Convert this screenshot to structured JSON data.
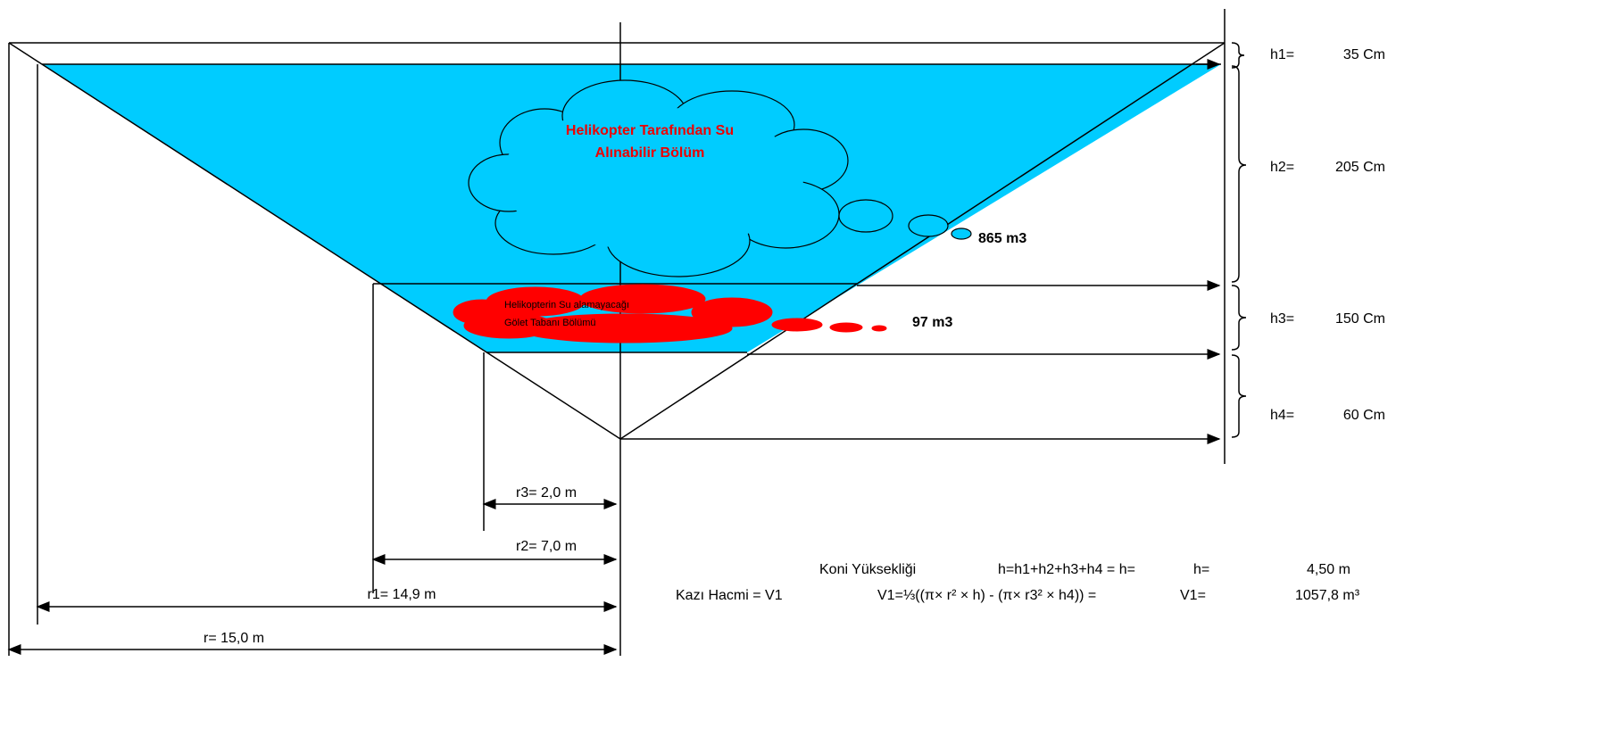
{
  "cloud_upper": {
    "lines": [
      "Helikopter Tarafından Su",
      "Alınabilir  Bölüm"
    ],
    "volume": "865 m3"
  },
  "cloud_lower": {
    "lines": [
      "Helikopterin Su alamayacağı",
      "Gölet Tabanı Bölümü"
    ],
    "volume": "97 m3"
  },
  "heights": [
    {
      "label": "h1=",
      "value": "35 Cm"
    },
    {
      "label": "h2=",
      "value": "205 Cm"
    },
    {
      "label": "h3=",
      "value": "150 Cm"
    },
    {
      "label": "h4=",
      "value": "60 Cm"
    }
  ],
  "radii": [
    "r3= 2,0 m",
    "r2= 7,0 m",
    "r1= 14,9 m",
    "r= 15,0 m"
  ],
  "formulas": [
    [
      "Koni Yüksekliği",
      "h=h1+h2+h3+h4 = h=",
      "h=",
      "4,50  m"
    ],
    [
      "Kazı Hacmi = V1",
      "V1=⅓((π× r² × h) - (π× r3² × h4))  =",
      "V1=",
      "1057,8  m³"
    ]
  ]
}
